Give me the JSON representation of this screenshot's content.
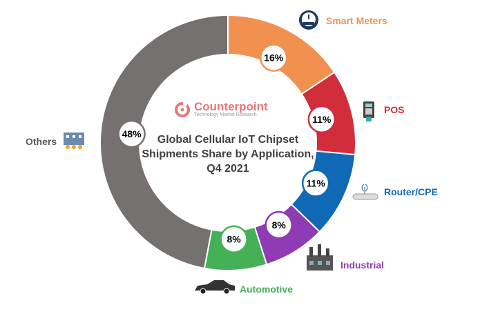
{
  "chart_data": {
    "type": "pie",
    "donut": true,
    "title": "Global Cellular IoT Chipset Shipments Share by Application, Q4 2021",
    "categories": [
      "Smart Meters",
      "POS",
      "Router/CPE",
      "Industrial",
      "Automotive",
      "Others"
    ],
    "values": [
      16,
      11,
      11,
      8,
      8,
      48
    ],
    "labels": [
      "16%",
      "11%",
      "11%",
      "8%",
      "8%",
      "48%"
    ],
    "colors": [
      "#F09150",
      "#D12D3B",
      "#0F69B4",
      "#8E3BB4",
      "#44B157",
      "#767171"
    ],
    "icons": [
      "meter-icon",
      "pos-terminal-icon",
      "router-icon",
      "factory-icon",
      "car-icon",
      "office-building-icon"
    ]
  },
  "logo": {
    "name": "Counterpoint",
    "tagline": "Technology Market Research"
  }
}
